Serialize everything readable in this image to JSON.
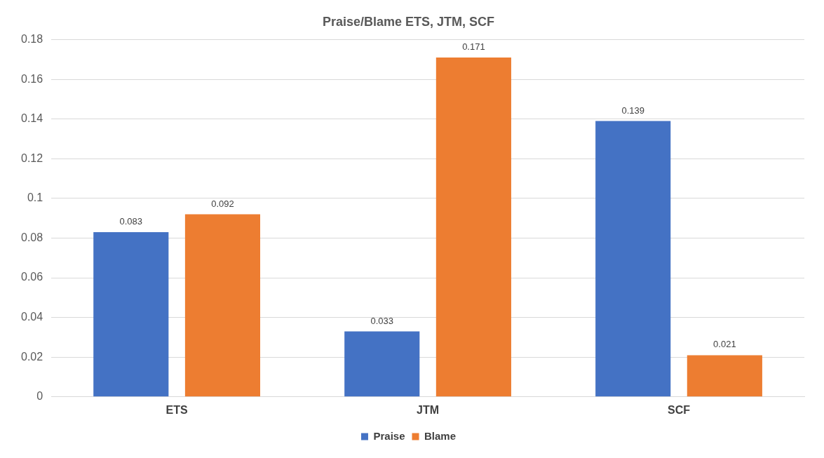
{
  "chart_data": {
    "type": "bar",
    "title": "Praise/Blame ETS, JTM, SCF",
    "categories": [
      "ETS",
      "JTM",
      "SCF"
    ],
    "series": [
      {
        "name": "Praise",
        "color": "#4472c4",
        "values": [
          0.083,
          0.033,
          0.139
        ]
      },
      {
        "name": "Blame",
        "color": "#ed7d31",
        "values": [
          0.092,
          0.171,
          0.021
        ]
      }
    ],
    "ylim": [
      0,
      0.18
    ],
    "yticks": [
      0,
      0.02,
      0.04,
      0.06,
      0.08,
      0.1,
      0.12,
      0.14,
      0.16,
      0.18
    ],
    "grid": "y",
    "legend": "bottom",
    "data_labels": true
  }
}
